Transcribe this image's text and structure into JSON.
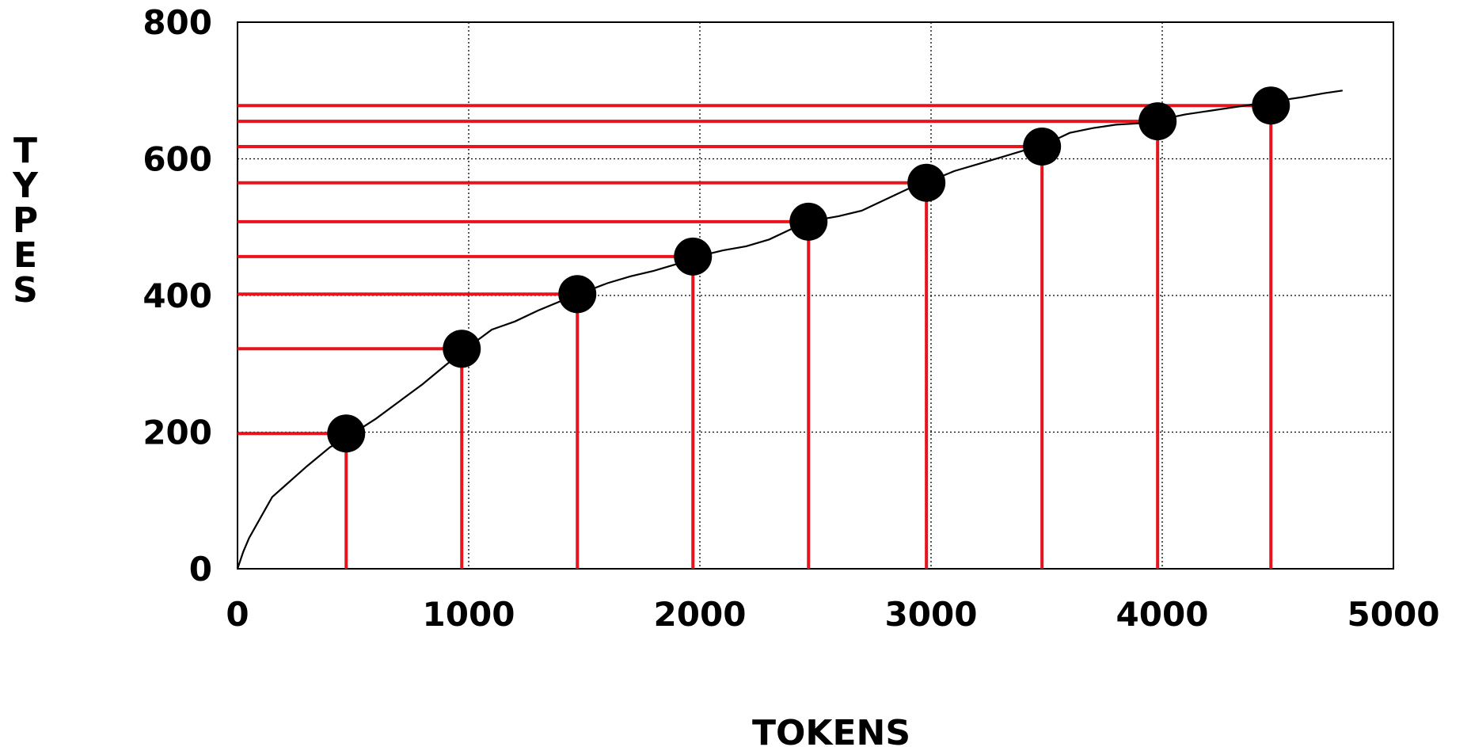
{
  "chart_data": {
    "type": "line",
    "xlabel": "TOKENS",
    "ylabel": "TYPES",
    "xlim": [
      0,
      5000
    ],
    "ylim": [
      0,
      800
    ],
    "x_ticks": [
      0,
      1000,
      2000,
      3000,
      4000,
      5000
    ],
    "y_ticks": [
      0,
      200,
      400,
      600,
      800
    ],
    "grid": true,
    "grid_style": "dotted",
    "colors": {
      "curve": "#000000",
      "guides": "#e8141b",
      "markers": "#000000"
    },
    "curve": {
      "x": [
        0,
        25,
        50,
        100,
        150,
        200,
        300,
        400,
        500,
        600,
        700,
        800,
        900,
        1000,
        1100,
        1200,
        1300,
        1400,
        1500,
        1600,
        1700,
        1800,
        1900,
        2000,
        2100,
        2200,
        2300,
        2400,
        2500,
        2600,
        2700,
        2800,
        2900,
        3000,
        3100,
        3200,
        3300,
        3400,
        3500,
        3600,
        3700,
        3800,
        3900,
        4000,
        4100,
        4200,
        4300,
        4400,
        4500,
        4600,
        4700,
        4780
      ],
      "y": [
        0,
        25,
        45,
        75,
        105,
        120,
        150,
        178,
        198,
        220,
        245,
        270,
        298,
        325,
        350,
        362,
        378,
        392,
        405,
        418,
        428,
        436,
        446,
        458,
        466,
        472,
        482,
        498,
        510,
        516,
        524,
        540,
        556,
        568,
        582,
        592,
        602,
        612,
        622,
        638,
        645,
        650,
        652,
        658,
        665,
        670,
        675,
        680,
        685,
        690,
        696,
        700
      ]
    },
    "samples": {
      "x": [
        470,
        970,
        1470,
        1970,
        2470,
        2980,
        3480,
        3980,
        4470
      ],
      "y": [
        198,
        322,
        402,
        457,
        508,
        565,
        618,
        655,
        678
      ]
    }
  }
}
